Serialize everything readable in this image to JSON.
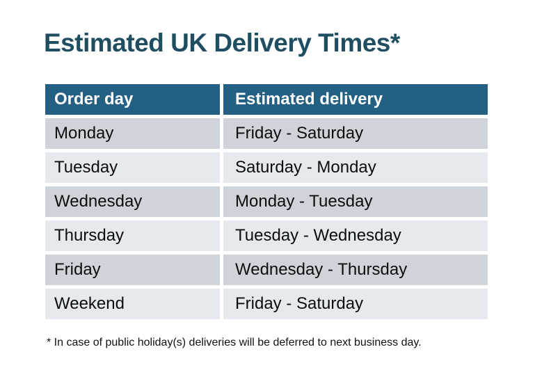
{
  "page": {
    "title": "Estimated UK Delivery Times*"
  },
  "table": {
    "headers": [
      "Order day",
      "Estimated delivery"
    ],
    "rows": [
      [
        "Monday",
        "Friday - Saturday"
      ],
      [
        "Tuesday",
        "Saturday - Monday"
      ],
      [
        "Wednesday",
        "Monday - Tuesday"
      ],
      [
        "Thursday",
        "Tuesday - Wednesday"
      ],
      [
        "Friday",
        "Wednesday - Thursday"
      ],
      [
        "Weekend",
        "Friday - Saturday"
      ]
    ]
  },
  "footnote": "* In case of public holiday(s) deliveries will be deferred to next business day.",
  "colors": {
    "background": "#ffffff",
    "title_text": "#1f4e63",
    "header_bg": "#236083",
    "header_text": "#ffffff",
    "row_odd_bg": "#cfd3da",
    "row_even_bg": "#e6e9ed",
    "body_text": "#0d0d0d",
    "footnote_text": "#111111"
  }
}
